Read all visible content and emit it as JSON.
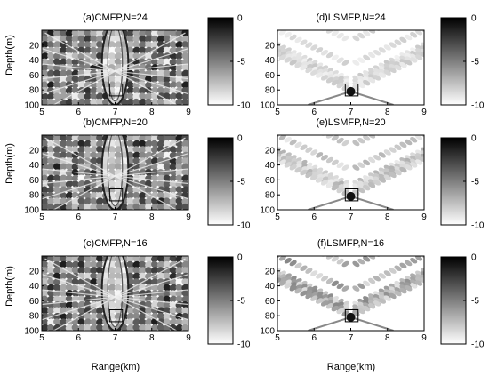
{
  "figure": {
    "xlabel": "Range(km)",
    "ylabel": "Depth(m)"
  },
  "chart_data": [
    {
      "type": "heatmap",
      "title": "(a)CMFP,N=24",
      "method": "CMFP",
      "N": 24,
      "x_ticks": [
        5,
        6,
        7,
        8,
        9
      ],
      "y_ticks": [
        20,
        40,
        60,
        80,
        100
      ],
      "xlim": [
        5,
        9
      ],
      "ylim": [
        0,
        100
      ],
      "y_inverted": true,
      "colorbar": {
        "ticks": [
          0,
          -5,
          -10
        ],
        "range": [
          -10,
          0
        ],
        "colormap": "grayscale, black=0 dB, white=-10 dB"
      },
      "target_box": {
        "range_km": [
          6.85,
          7.2
        ],
        "depth_m": [
          72,
          88
        ]
      },
      "texture": "strong"
    },
    {
      "type": "heatmap",
      "title": "(b)CMFP,N=20",
      "method": "CMFP",
      "N": 20,
      "x_ticks": [
        5,
        6,
        7,
        8,
        9
      ],
      "y_ticks": [
        20,
        40,
        60,
        80,
        100
      ],
      "xlim": [
        5,
        9
      ],
      "ylim": [
        0,
        100
      ],
      "y_inverted": true,
      "colorbar": {
        "ticks": [
          0,
          -5,
          -10
        ],
        "range": [
          -10,
          0
        ],
        "colormap": "grayscale, black=0 dB, white=-10 dB"
      },
      "target_box": {
        "range_km": [
          6.85,
          7.2
        ],
        "depth_m": [
          72,
          88
        ]
      },
      "texture": "strong"
    },
    {
      "type": "heatmap",
      "title": "(c)CMFP,N=16",
      "method": "CMFP",
      "N": 16,
      "x_ticks": [
        5,
        6,
        7,
        8,
        9
      ],
      "y_ticks": [
        20,
        40,
        60,
        80,
        100
      ],
      "xlim": [
        5,
        9
      ],
      "ylim": [
        0,
        100
      ],
      "y_inverted": true,
      "colorbar": {
        "ticks": [
          0,
          -5,
          -10
        ],
        "range": [
          -10,
          0
        ],
        "colormap": "grayscale, black=0 dB, white=-10 dB"
      },
      "target_box": {
        "range_km": [
          6.85,
          7.2
        ],
        "depth_m": [
          72,
          88
        ]
      },
      "texture": "strong"
    },
    {
      "type": "heatmap",
      "title": "(d)LSMFP,N=24",
      "method": "LSMFP",
      "N": 24,
      "x_ticks": [
        5,
        6,
        7,
        8,
        9
      ],
      "y_ticks": [
        20,
        40,
        60,
        80,
        100
      ],
      "xlim": [
        5,
        9
      ],
      "ylim": [
        0,
        100
      ],
      "y_inverted": true,
      "colorbar": {
        "ticks": [
          0,
          -5,
          -10
        ],
        "range": [
          -10,
          0
        ],
        "colormap": "grayscale, black=0 dB, white=-10 dB"
      },
      "target_box": {
        "range_km": [
          6.85,
          7.2
        ],
        "depth_m": [
          72,
          88
        ]
      },
      "texture": "sparse"
    },
    {
      "type": "heatmap",
      "title": "(e)LSMFP,N=20",
      "method": "LSMFP",
      "N": 20,
      "x_ticks": [
        5,
        6,
        7,
        8,
        9
      ],
      "y_ticks": [
        20,
        40,
        60,
        80,
        100
      ],
      "xlim": [
        5,
        9
      ],
      "ylim": [
        0,
        100
      ],
      "y_inverted": true,
      "colorbar": {
        "ticks": [
          0,
          -5,
          -10
        ],
        "range": [
          -10,
          0
        ],
        "colormap": "grayscale, black=0 dB, white=-10 dB"
      },
      "target_box": {
        "range_km": [
          6.85,
          7.2
        ],
        "depth_m": [
          72,
          88
        ]
      },
      "texture": "sparse"
    },
    {
      "type": "heatmap",
      "title": "(f)LSMFP,N=16",
      "method": "LSMFP",
      "N": 16,
      "x_ticks": [
        5,
        6,
        7,
        8,
        9
      ],
      "y_ticks": [
        20,
        40,
        60,
        80,
        100
      ],
      "xlim": [
        5,
        9
      ],
      "ylim": [
        0,
        100
      ],
      "y_inverted": true,
      "colorbar": {
        "ticks": [
          0,
          -5,
          -10
        ],
        "range": [
          -10,
          0
        ],
        "colormap": "grayscale, black=0 dB, white=-10 dB"
      },
      "target_box": {
        "range_km": [
          6.85,
          7.2
        ],
        "depth_m": [
          72,
          88
        ]
      },
      "texture": "medium"
    }
  ]
}
